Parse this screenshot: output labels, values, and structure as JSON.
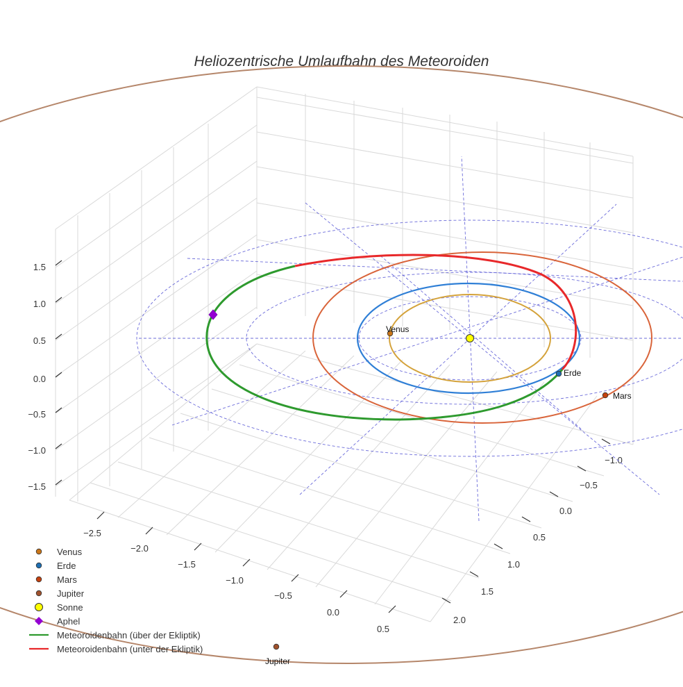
{
  "chart_data": {
    "type": "line",
    "title": "Heliozentrische Umlaufbahn des Meteoroiden",
    "axes": {
      "x_ticks": [
        "−2.5",
        "−2.0",
        "−1.5",
        "−1.0",
        "−0.5",
        "0.0",
        "0.5"
      ],
      "y_ticks": [
        "−1.0",
        "−0.5",
        "0.0",
        "0.5",
        "1.0",
        "1.5",
        "2.0"
      ],
      "z_ticks": [
        "1.5",
        "1.0",
        "0.5",
        "0.0",
        "−0.5",
        "−1.0",
        "−1.5"
      ],
      "xlim": [
        -2.7,
        0.7
      ],
      "ylim": [
        -1.2,
        2.1
      ],
      "zlim": [
        -1.8,
        1.8
      ],
      "grid": true
    },
    "planets": [
      {
        "name": "Venus",
        "orbit_radius_au": 0.72,
        "color": "#d4a23a",
        "marker_color": "#c9761a",
        "label": "Venus"
      },
      {
        "name": "Erde",
        "orbit_radius_au": 1.0,
        "color": "#2f7fd6",
        "marker_color": "#1f6fb2",
        "label": "Erde"
      },
      {
        "name": "Mars",
        "orbit_radius_au": 1.52,
        "color": "#d9643a",
        "marker_color": "#c4420f",
        "label": "Mars"
      },
      {
        "name": "Jupiter",
        "orbit_radius_au": 5.2,
        "color": "#b5866a",
        "marker_color": "#a0522d",
        "label": "Jupiter"
      }
    ],
    "sun": {
      "name": "Sonne",
      "color": "#ffff00"
    },
    "aphel": {
      "name": "Aphel",
      "color": "#9400d3"
    },
    "series": [
      {
        "name": "Meteoroidenbahn (über der Ekliptik)",
        "color": "#2e9a2e"
      },
      {
        "name": "Meteoroidenbahn (unter der Ekliptik)",
        "color": "#e8282a"
      }
    ],
    "legend": {
      "placement": "bottom-left",
      "entries": [
        {
          "label": "Venus",
          "marker": "circle",
          "color": "#c9761a"
        },
        {
          "label": "Erde",
          "marker": "circle",
          "color": "#1f6fb2"
        },
        {
          "label": "Mars",
          "marker": "circle",
          "color": "#c4420f"
        },
        {
          "label": "Jupiter",
          "marker": "circle",
          "color": "#a0522d"
        },
        {
          "label": "Sonne",
          "marker": "circle-large",
          "color": "#ffff00"
        },
        {
          "label": "Aphel",
          "marker": "diamond",
          "color": "#9400d3"
        },
        {
          "label": "Meteoroidenbahn (über der Ekliptik)",
          "marker": "line",
          "color": "#2e9a2e"
        },
        {
          "label": "Meteoroidenbahn (unter der Ekliptik)",
          "marker": "line",
          "color": "#e8282a"
        }
      ]
    }
  }
}
